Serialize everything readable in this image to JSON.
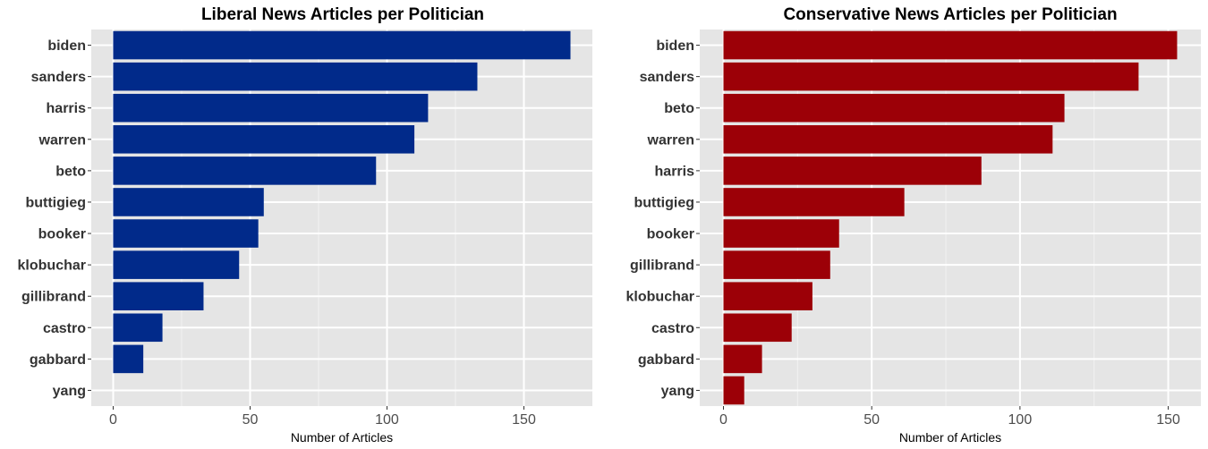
{
  "chart_data": [
    {
      "type": "bar",
      "orientation": "horizontal",
      "title": "Liberal News Articles per Politician",
      "xlabel": "Number of Articles",
      "ylabel": "",
      "categories": [
        "biden",
        "sanders",
        "harris",
        "warren",
        "beto",
        "buttigieg",
        "booker",
        "klobuchar",
        "gillibrand",
        "castro",
        "gabbard",
        "yang"
      ],
      "values": [
        167,
        133,
        115,
        110,
        96,
        55,
        53,
        46,
        33,
        18,
        11,
        0
      ],
      "xlim": [
        -8,
        175
      ],
      "xticks": [
        0,
        50,
        100,
        150
      ],
      "xtick_labels": [
        "0",
        "50",
        "100",
        "150"
      ],
      "color": "#012a8a",
      "grid": true
    },
    {
      "type": "bar",
      "orientation": "horizontal",
      "title": "Conservative News Articles per Politician",
      "xlabel": "Number of Articles",
      "ylabel": "",
      "categories": [
        "biden",
        "sanders",
        "beto",
        "warren",
        "harris",
        "buttigieg",
        "booker",
        "gillibrand",
        "klobuchar",
        "castro",
        "gabbard",
        "yang"
      ],
      "values": [
        153,
        140,
        115,
        111,
        87,
        61,
        39,
        36,
        30,
        23,
        13,
        7
      ],
      "xlim": [
        -8,
        161
      ],
      "xticks": [
        0,
        50,
        100,
        150
      ],
      "xtick_labels": [
        "0",
        "50",
        "100",
        "150"
      ],
      "color": "#9c0007",
      "grid": true
    }
  ]
}
